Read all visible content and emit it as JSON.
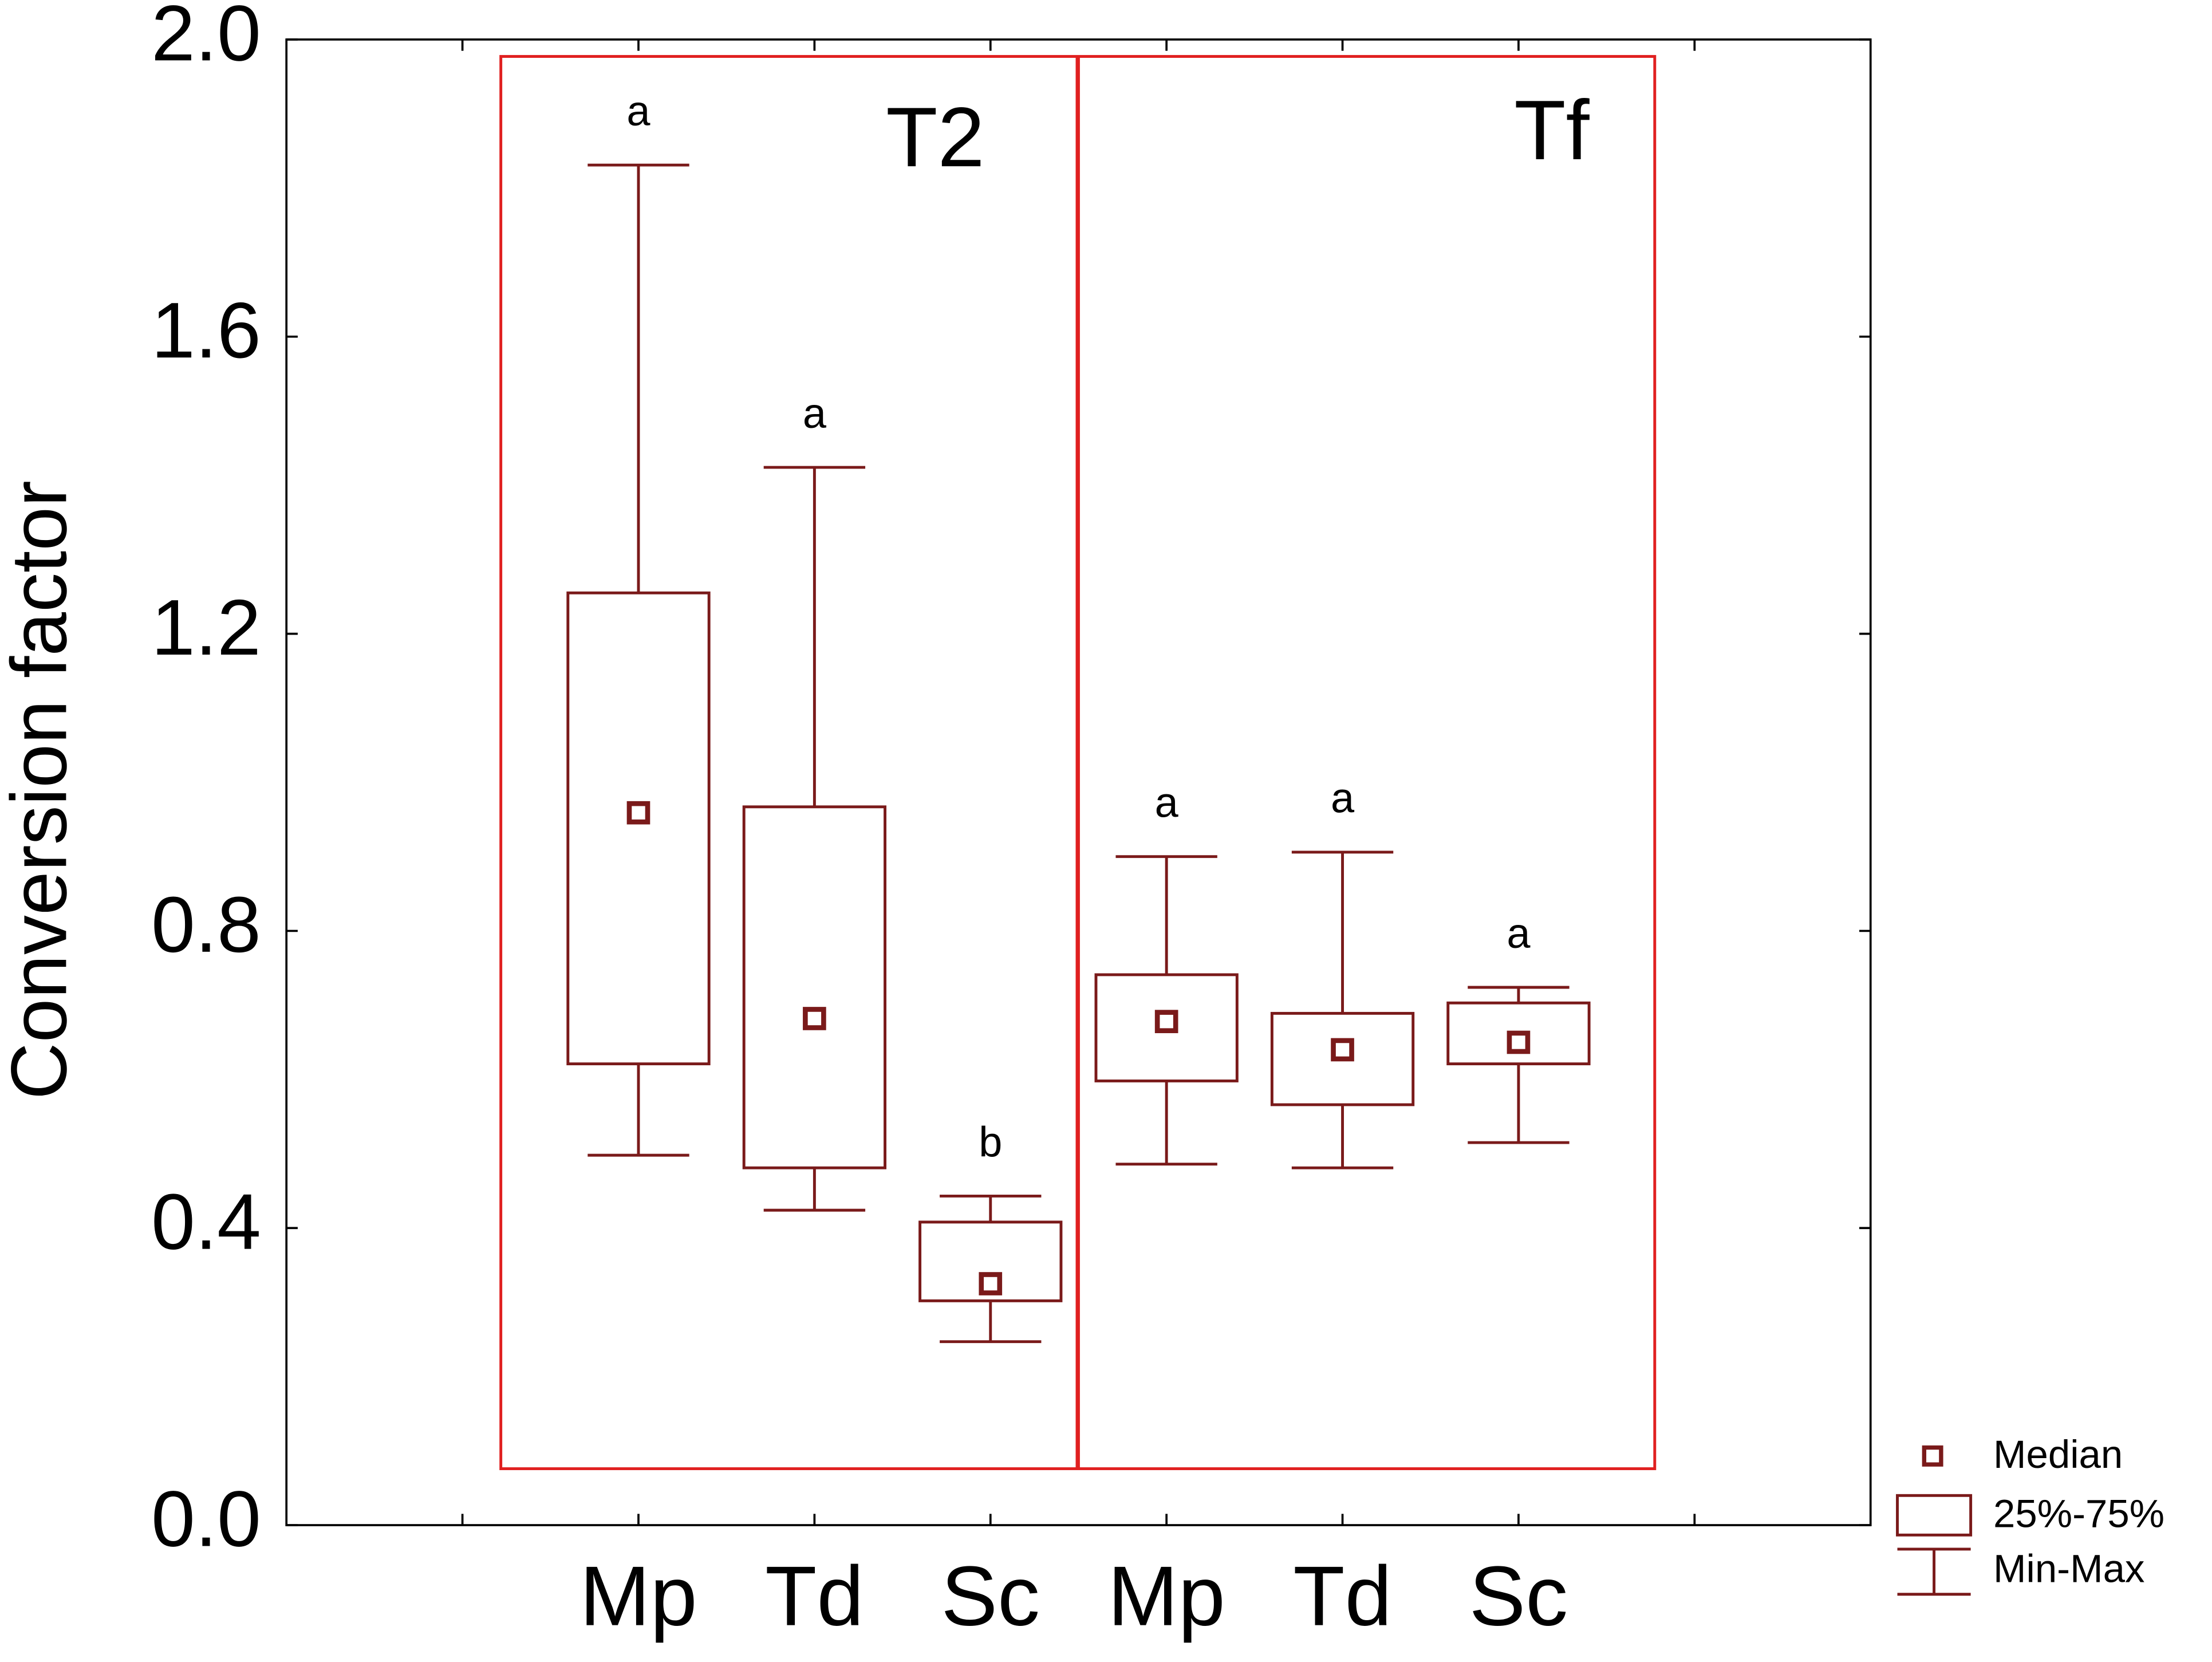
{
  "chart_data": {
    "type": "box",
    "y_label": "Conversion factor",
    "categories": [
      null,
      "Mp",
      "Td",
      "Sc",
      "Mp",
      "Td",
      "Sc",
      null
    ],
    "min": [
      null,
      0.498,
      0.424,
      0.247,
      0.486,
      0.481,
      0.515,
      null
    ],
    "q1": [
      null,
      0.621,
      0.481,
      0.302,
      0.598,
      0.566,
      0.621,
      null
    ],
    "median": [
      null,
      0.959,
      0.682,
      0.325,
      0.678,
      0.64,
      0.65,
      null
    ],
    "q3": [
      null,
      1.255,
      0.967,
      0.408,
      0.741,
      0.689,
      0.703,
      null
    ],
    "max": [
      null,
      1.831,
      1.424,
      0.443,
      0.9,
      0.906,
      0.724,
      null
    ],
    "letters": [
      null,
      "a",
      "a",
      "b",
      "a",
      "a",
      "a",
      null
    ],
    "groups": [
      "T2",
      "Tf"
    ],
    "color": "#7a1a1a",
    "ylim": [
      0,
      2
    ],
    "yticks": [
      {
        "value": 0,
        "label": "0.0"
      },
      0.4,
      0.8,
      1.2,
      1.6,
      {
        "value": 2,
        "label": "2.0"
      }
    ],
    "legend": [
      "Median",
      "25%-75%",
      "Min-Max"
    ]
  }
}
